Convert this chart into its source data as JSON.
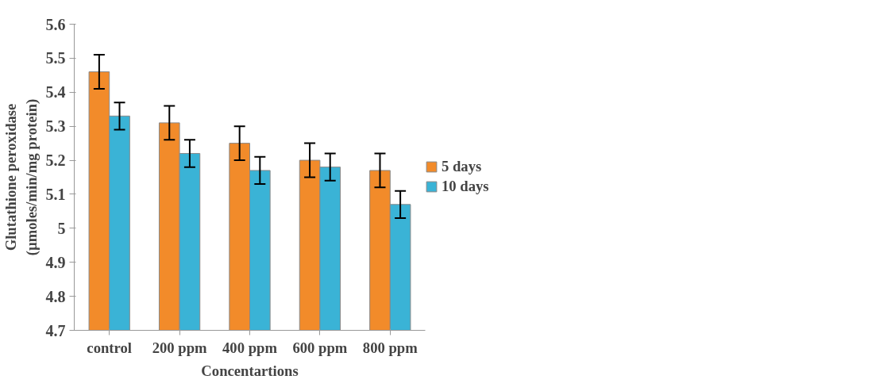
{
  "chart_data": {
    "type": "bar",
    "xlabel": "Concentartions",
    "ylabel": "Glutathione peroxidase\n(µmoles/min/mg protein)",
    "categories": [
      "control",
      "200 ppm",
      "400 ppm",
      "600 ppm",
      "800 ppm"
    ],
    "series": [
      {
        "name": "5 days",
        "color": "#f28b2a",
        "values": [
          5.46,
          5.31,
          5.25,
          5.2,
          5.17
        ],
        "errors": [
          0.05,
          0.05,
          0.05,
          0.05,
          0.05
        ]
      },
      {
        "name": "10 days",
        "color": "#3ab3d6",
        "values": [
          5.33,
          5.22,
          5.17,
          5.18,
          5.07
        ],
        "errors": [
          0.04,
          0.04,
          0.04,
          0.04,
          0.04
        ]
      }
    ],
    "ylim": [
      4.7,
      5.6
    ],
    "yticks": [
      4.7,
      4.8,
      4.9,
      5.0,
      5.1,
      5.2,
      5.3,
      5.4,
      5.5,
      5.6
    ],
    "grid": false,
    "legend": "right"
  }
}
